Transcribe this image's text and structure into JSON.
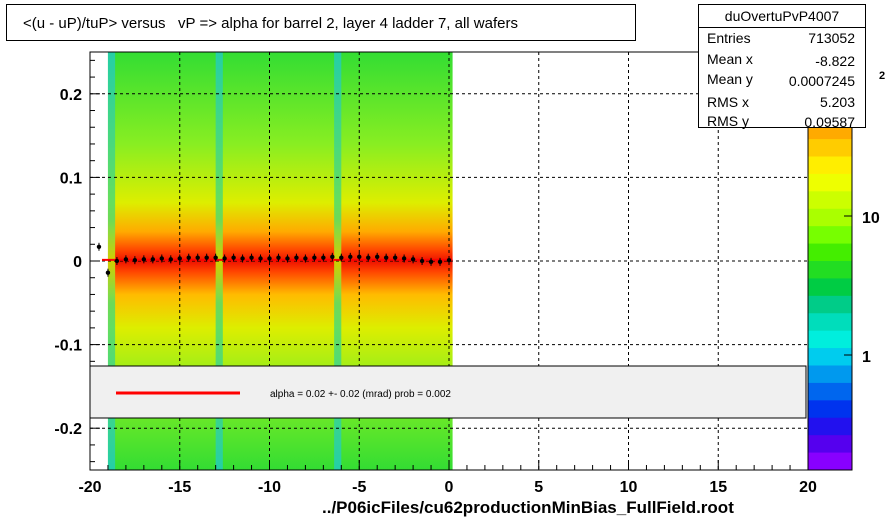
{
  "title": "<(u - uP)/tuP> versus   vP => alpha for barrel 2, layer 4 ladder 7, all wafers",
  "footer": "../P06icFiles/cu62productionMinBias_FullField.root",
  "stats": {
    "name": "duOvertuPvP4007",
    "rows": [
      {
        "key": "Entries",
        "value": "713052"
      },
      {
        "key": "Mean x",
        "value": "-8.822"
      },
      {
        "key": "Mean y",
        "value": "0.0007245"
      },
      {
        "key": "RMS x",
        "value": "5.203"
      },
      {
        "key": "RMS y",
        "value": "0.09587"
      }
    ]
  },
  "fit_legend": "alpha =    0.02 +-  0.02 (mrad) prob = 0.002",
  "colors": {
    "fit_line": "#ff0000",
    "profile_points": "#000000",
    "legend_box": "#f0f0f0"
  },
  "chart_data": {
    "type": "heatmap",
    "xlim": [
      -20,
      20
    ],
    "ylim": [
      -0.25,
      0.25
    ],
    "x_ticks": [
      -20,
      -15,
      -10,
      -5,
      0,
      5,
      10,
      15,
      20
    ],
    "x_tick_labels": [
      "-20",
      "-15",
      "-10",
      "-5",
      "0",
      "5",
      "10",
      "15",
      "20"
    ],
    "y_ticks": [
      -0.2,
      -0.1,
      0,
      0.1,
      0.2
    ],
    "y_tick_labels": [
      "-0.2",
      "-0.1",
      "0",
      "0.1",
      "0.2"
    ],
    "z_scale": "log",
    "z_tick_labels": [
      "1",
      "10"
    ],
    "z_exponent_label": "2",
    "grid": true,
    "filled_x_range": [
      -19,
      0.2
    ],
    "profile_x": [
      -19.5,
      -19.0,
      -18.5,
      -18.0,
      -17.5,
      -17.0,
      -16.5,
      -16.0,
      -15.5,
      -15.0,
      -14.5,
      -14.0,
      -13.5,
      -13.0,
      -12.5,
      -12.0,
      -11.5,
      -11.0,
      -10.5,
      -10.0,
      -9.5,
      -9.0,
      -8.5,
      -8.0,
      -7.5,
      -7.0,
      -6.5,
      -6.0,
      -5.5,
      -5.0,
      -4.5,
      -4.0,
      -3.5,
      -3.0,
      -2.5,
      -2.0,
      -1.5,
      -1.0,
      -0.5,
      0.0
    ],
    "profile_y": [
      0.017,
      -0.014,
      0.0,
      0.002,
      0.001,
      0.002,
      0.002,
      0.003,
      0.002,
      0.003,
      0.004,
      0.004,
      0.004,
      0.004,
      0.003,
      0.004,
      0.003,
      0.004,
      0.003,
      0.003,
      0.004,
      0.003,
      0.004,
      0.003,
      0.004,
      0.004,
      0.005,
      0.004,
      0.005,
      0.005,
      0.004,
      0.005,
      0.004,
      0.004,
      0.003,
      0.002,
      0.0,
      -0.001,
      -0.001,
      0.001
    ],
    "fit_line": {
      "x": [
        -20,
        0.2
      ],
      "y": [
        0.0013,
        0.0013
      ]
    }
  }
}
